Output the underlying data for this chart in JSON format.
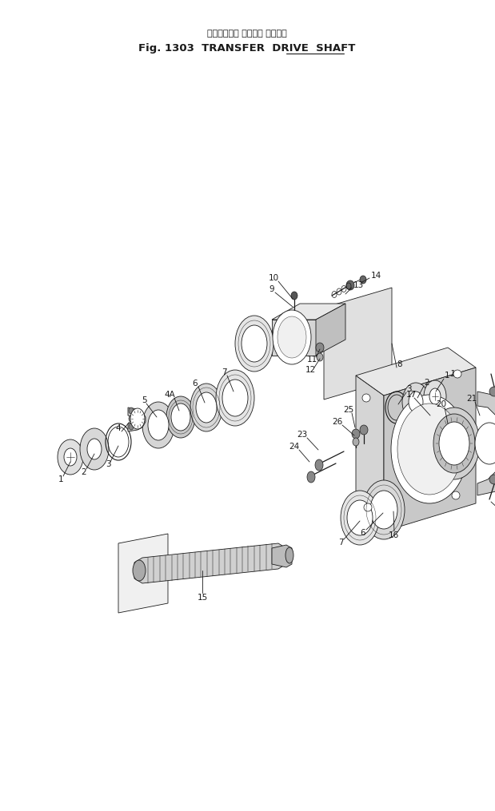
{
  "title_japanese": "トランスファ ドライブ シャフト",
  "title_line1": "Fig. 1303  TRANSFER  DRIVE  SHAFT",
  "bg_color": "#ffffff",
  "line_color": "#1a1a1a",
  "fig_width": 6.19,
  "fig_height": 10.15,
  "dpi": 100
}
